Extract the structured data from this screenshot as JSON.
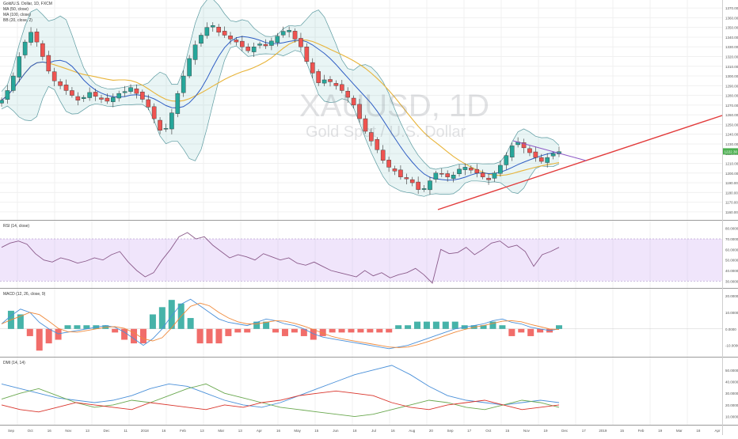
{
  "colors": {
    "bull": "#26a69a",
    "bear": "#ef5350",
    "ma50": "#2f5ec4",
    "ma100": "#e8b43a",
    "band_line": "#5b9aa0",
    "band_fill": "rgba(120,190,190,0.16)",
    "trendline_up": "#e23b3b",
    "trendline_down": "#8f5bc7",
    "rsi_line": "#8a5a8a",
    "rsi_band": "rgba(200,160,240,0.28)",
    "macd_line": "#4a90d9",
    "signal_line": "#ef8a3c",
    "dmi_plus": "#6aa84f",
    "dmi_minus": "#d9342b",
    "adx": "#4a90d9",
    "price_label_bg": "#4caf50",
    "grid": "#f0f0f0"
  },
  "legend": {
    "title": "Gold/U.S. Dollar, 1D, FXCM",
    "ma1": "MA (50, close)",
    "ma2": "MA (100, close)",
    "bb": "BB (20, close, 2)"
  },
  "watermark": {
    "symbol": "XAUUSD, 1D",
    "name": "Gold Spot / U.S. Dollar"
  },
  "price_axis": {
    "ticks": [
      "1370.00",
      "1360.00",
      "1350.00",
      "1340.00",
      "1330.00",
      "1320.00",
      "1310.00",
      "1300.00",
      "1290.00",
      "1280.00",
      "1270.00",
      "1260.00",
      "1250.00",
      "1240.00",
      "1230.00",
      "1220.00",
      "1210.00",
      "1200.00",
      "1190.00",
      "1180.00",
      "1170.00",
      "1160.00"
    ],
    "last_price": "1222.30"
  },
  "rsi_pane": {
    "label": "RSI (14, close)",
    "ticks": [
      "80.0000",
      "70.0000",
      "60.0000",
      "50.0000",
      "40.0000",
      "30.0000"
    ]
  },
  "macd_pane": {
    "label": "MACD (12, 26, close, 9)",
    "ticks": [
      "20.0000",
      "10.0000",
      "0.0000",
      "-10.0000"
    ]
  },
  "dmi_pane": {
    "label": "DMI (14, 14)",
    "ticks": [
      "50.0000",
      "40.0000",
      "30.0000",
      "20.0000",
      "10.0000"
    ]
  },
  "time_axis": {
    "labels": [
      "Sep",
      "Oct",
      "16",
      "Nov",
      "13",
      "Dec",
      "11",
      "2018",
      "16",
      "Feb",
      "13",
      "Mar",
      "13",
      "Apr",
      "16",
      "May",
      "15",
      "Jun",
      "18",
      "Jul",
      "16",
      "Aug",
      "20",
      "Sep",
      "17",
      "Oct",
      "15",
      "Nov",
      "19",
      "Dec",
      "17",
      "2019",
      "15",
      "Feb",
      "19",
      "Mar",
      "18",
      "Apr"
    ]
  },
  "chart_data": {
    "type": "candlestick",
    "symbol": "Gold/U.S. Dollar",
    "interval": "1D",
    "source": "FXCM",
    "y_range": [
      1155,
      1375
    ],
    "last_price": 1222.3,
    "overlays": [
      "MA (50, close)",
      "MA (100, close)",
      "BB (20, close, 2)"
    ],
    "close_series_approx": [
      1275,
      1285,
      1300,
      1320,
      1335,
      1345,
      1335,
      1320,
      1305,
      1295,
      1290,
      1285,
      1280,
      1275,
      1278,
      1283,
      1279,
      1276,
      1274,
      1278,
      1282,
      1284,
      1288,
      1282,
      1276,
      1268,
      1256,
      1244,
      1246,
      1262,
      1282,
      1300,
      1318,
      1332,
      1342,
      1350,
      1352,
      1345,
      1342,
      1338,
      1335,
      1330,
      1326,
      1330,
      1333,
      1331,
      1336,
      1341,
      1346,
      1347,
      1338,
      1330,
      1315,
      1303,
      1293,
      1296,
      1294,
      1290,
      1285,
      1278,
      1270,
      1256,
      1243,
      1233,
      1224,
      1213,
      1206,
      1202,
      1196,
      1194,
      1190,
      1183,
      1184,
      1192,
      1200,
      1199,
      1196,
      1198,
      1204,
      1206,
      1203,
      1200,
      1196,
      1193,
      1200,
      1208,
      1218,
      1228,
      1232,
      1226,
      1221,
      1216,
      1212,
      1216,
      1220,
      1222
    ],
    "rsi_series_approx": [
      62,
      66,
      68,
      65,
      56,
      50,
      48,
      52,
      50,
      47,
      49,
      52,
      50,
      55,
      58,
      48,
      40,
      34,
      38,
      50,
      60,
      72,
      76,
      70,
      72,
      64,
      58,
      52,
      55,
      53,
      50,
      56,
      53,
      50,
      52,
      47,
      45,
      48,
      44,
      40,
      38,
      36,
      34,
      40,
      35,
      38,
      33,
      36,
      38,
      42,
      36,
      28,
      60,
      56,
      57,
      62,
      55,
      60,
      66,
      68,
      62,
      64,
      58,
      44,
      55,
      58,
      62
    ],
    "macd_series_approx": [
      3,
      8,
      12,
      10,
      4,
      0,
      -3,
      -2,
      -1,
      0,
      1,
      2,
      1,
      -2,
      -6,
      -10,
      -6,
      0,
      8,
      15,
      18,
      14,
      10,
      6,
      4,
      3,
      2,
      4,
      6,
      5,
      3,
      2,
      0,
      -3,
      -5,
      -6,
      -7,
      -8,
      -9,
      -10,
      -11,
      -12,
      -11,
      -10,
      -8,
      -6,
      -4,
      -2,
      0,
      1,
      2,
      3,
      5,
      6,
      4,
      3,
      1,
      0,
      -1,
      0
    ],
    "dmi_series_approx": {
      "plus_di": [
        25,
        30,
        34,
        28,
        22,
        18,
        20,
        24,
        22,
        28,
        34,
        38,
        30,
        26,
        22,
        18,
        16,
        14,
        12,
        10,
        12,
        16,
        20,
        24,
        22,
        18,
        16,
        20,
        24,
        22,
        18
      ],
      "minus_di": [
        20,
        16,
        14,
        18,
        22,
        20,
        18,
        16,
        22,
        20,
        18,
        16,
        20,
        18,
        22,
        24,
        28,
        30,
        32,
        30,
        28,
        22,
        18,
        16,
        20,
        22,
        24,
        20,
        16,
        18,
        20
      ],
      "adx": [
        38,
        34,
        30,
        26,
        24,
        22,
        24,
        28,
        34,
        38,
        36,
        30,
        24,
        20,
        18,
        22,
        28,
        34,
        40,
        46,
        50,
        54,
        46,
        36,
        28,
        24,
        22,
        20,
        22,
        24,
        22
      ]
    }
  }
}
